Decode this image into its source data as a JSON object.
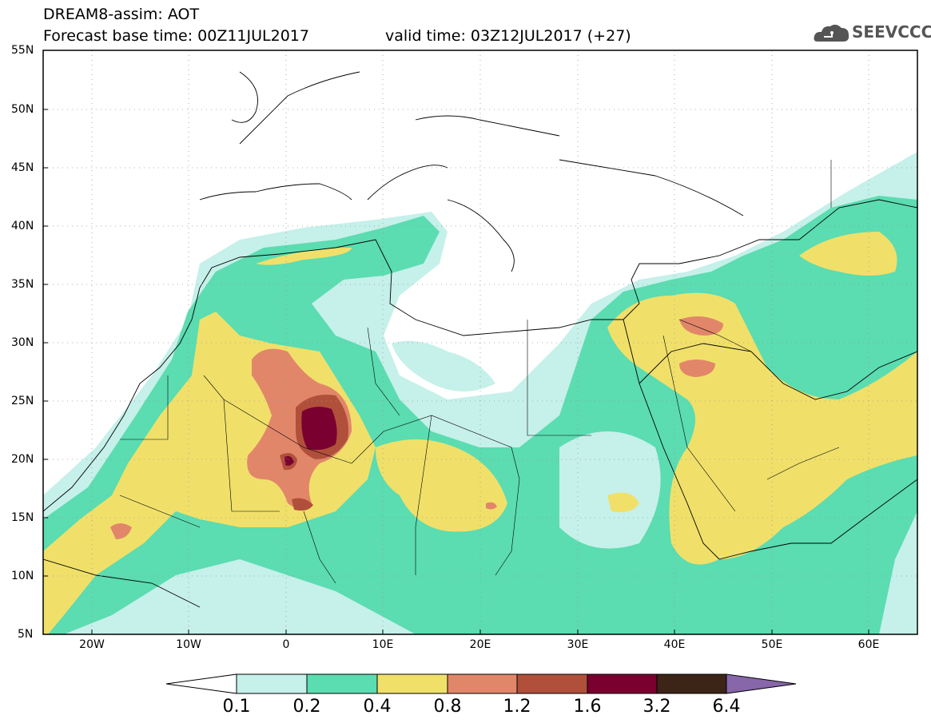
{
  "header": {
    "title": "DREAM8-assim: AOT",
    "base_time": "Forecast base time: 00Z11JUL2017",
    "valid_time": "valid time: 03Z12JUL2017 (+27)"
  },
  "logo": {
    "text": "SEEVCCC",
    "icon": "cloud-icon"
  },
  "map": {
    "latitude_labels": [
      "55N",
      "50N",
      "45N",
      "40N",
      "35N",
      "30N",
      "25N",
      "20N",
      "15N",
      "10N",
      "5N"
    ],
    "longitude_labels": [
      "20W",
      "10W",
      "0",
      "10E",
      "20E",
      "30E",
      "40E",
      "50E",
      "60E"
    ],
    "lon_range": [
      -25,
      65
    ],
    "lat_range": [
      5,
      55
    ],
    "grid": "dotted"
  },
  "colorbar": {
    "labels": [
      "0.1",
      "0.2",
      "0.4",
      "0.8",
      "1.2",
      "1.6",
      "3.2",
      "6.4"
    ],
    "colors": [
      "#c6f0ea",
      "#5bdcb1",
      "#f0e06a",
      "#e2866a",
      "#b0503a",
      "#7a0030",
      "#3c2416",
      "#8866aa"
    ]
  }
}
